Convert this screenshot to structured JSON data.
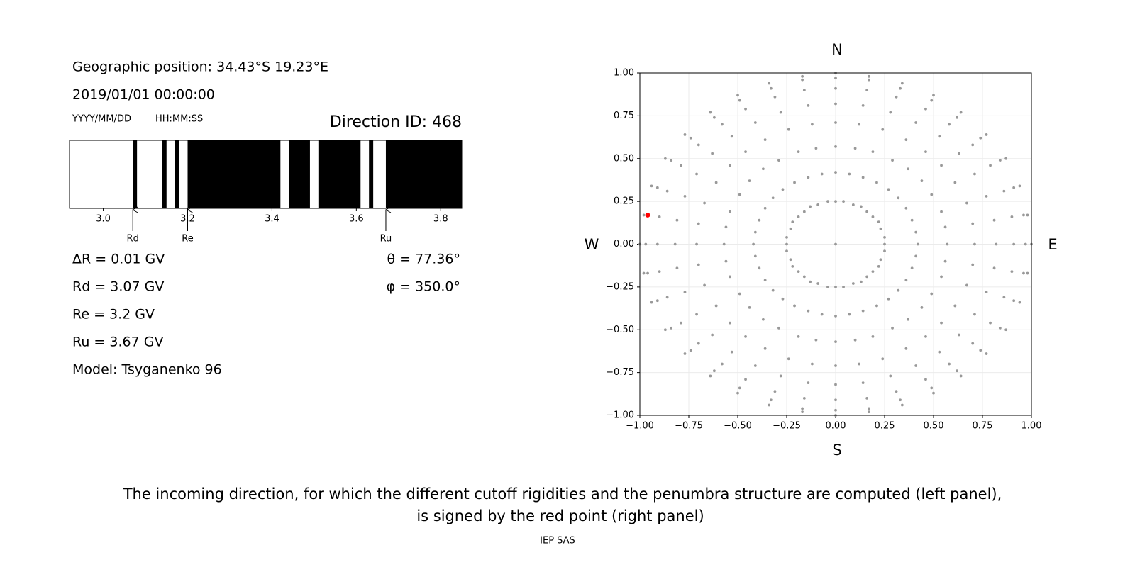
{
  "header": {
    "position": "Geographic position: 34.43°S 19.23°E",
    "datetime": "2019/01/01 00:00:00",
    "date_format": "YYYY/MM/DD",
    "time_format": "HH:MM:SS",
    "direction": "Direction ID: 468"
  },
  "results": {
    "left": [
      "ΔR = 0.01 GV",
      "Rd = 3.07 GV",
      "Re = 3.2 GV",
      "Ru = 3.67 GV",
      "Model: Tsyganenko 96"
    ],
    "right": [
      "θ = 77.36°",
      "φ = 350.0°"
    ]
  },
  "caption": [
    "The incoming direction, for which the different cutoff rigidities and the penumbra structure are computed (left panel),",
    "is signed by the red point (right panel)"
  ],
  "footer": "IEP SAS",
  "chart_data": [
    {
      "type": "penumbra",
      "color": "#000000",
      "xlim": [
        2.92,
        3.85
      ],
      "xticks": [
        {
          "value": 3,
          "label": "3.0"
        },
        3.2,
        3.4,
        3.6,
        3.8
      ],
      "intervals": [
        [
          3.07,
          3.08
        ],
        [
          3.14,
          3.15
        ],
        [
          3.17,
          3.18
        ],
        [
          3.2,
          3.42
        ],
        [
          3.44,
          3.49
        ],
        [
          3.51,
          3.61
        ],
        [
          3.63,
          3.64
        ],
        [
          3.67,
          3.85
        ]
      ],
      "markers": [
        {
          "label": "Rd",
          "value": 3.07
        },
        {
          "label": "Re",
          "value": 3.2
        },
        {
          "label": "Ru",
          "value": 3.67
        }
      ]
    },
    {
      "type": "scatter",
      "grid": true,
      "xlim": [
        -1,
        1
      ],
      "ylim": [
        -1,
        1
      ],
      "xticks": [
        {
          "value": -1,
          "label": "−1.00"
        },
        {
          "value": -0.75,
          "label": "−0.75"
        },
        {
          "value": -0.5,
          "label": "−0.50"
        },
        {
          "value": -0.25,
          "label": "−0.25"
        },
        {
          "value": 0,
          "label": "0.00"
        },
        0.25,
        {
          "value": 0.5,
          "label": "0.50"
        },
        {
          "value": 0.75,
          "label": "0.75"
        },
        {
          "value": 1,
          "label": "1.00"
        }
      ],
      "yticks": [
        {
          "value": -1,
          "label": "−1.00"
        },
        {
          "value": -0.75,
          "label": "−0.75"
        },
        {
          "value": -0.5,
          "label": "−0.50"
        },
        {
          "value": -0.25,
          "label": "−0.25"
        },
        {
          "value": 0,
          "label": "0.00"
        },
        0.25,
        {
          "value": 0.5,
          "label": "0.50"
        },
        {
          "value": 0.75,
          "label": "0.75"
        },
        {
          "value": 1,
          "label": "1.00"
        }
      ],
      "compass": {
        "north": "N",
        "south": "S",
        "west": "W",
        "east": "E"
      },
      "series": [
        {
          "color": "#999999",
          "x": [
            0,
            0,
            0.04,
            0.09,
            0.13,
            0.16,
            0.19,
            0.22,
            0.23,
            0.25,
            0.25,
            0.25,
            0.23,
            0.22,
            0.19,
            0.16,
            0.13,
            0.09,
            0.04,
            0,
            -0.04,
            -0.09,
            -0.13,
            -0.16,
            -0.19,
            -0.22,
            -0.23,
            -0.25,
            -0.25,
            -0.25,
            -0.23,
            -0.22,
            -0.19,
            -0.16,
            -0.13,
            -0.09,
            -0.04,
            0,
            0.07,
            0.14,
            0.21,
            0.27,
            0.32,
            0.36,
            0.39,
            0.41,
            0.42,
            0.41,
            0.39,
            0.36,
            0.32,
            0.27,
            0.21,
            0.14,
            0.07,
            0,
            -0.07,
            -0.14,
            -0.21,
            -0.27,
            -0.32,
            -0.36,
            -0.39,
            -0.41,
            -0.42,
            -0.41,
            -0.39,
            -0.36,
            -0.32,
            -0.27,
            -0.21,
            -0.14,
            -0.07,
            0,
            0.1,
            0.19,
            0.29,
            0.37,
            0.44,
            0.49,
            0.54,
            0.56,
            0.57,
            0.56,
            0.54,
            0.49,
            0.44,
            0.37,
            0.29,
            0.19,
            0.1,
            0,
            -0.1,
            -0.19,
            -0.29,
            -0.37,
            -0.44,
            -0.49,
            -0.54,
            -0.56,
            -0.57,
            -0.56,
            -0.54,
            -0.49,
            -0.44,
            -0.37,
            -0.29,
            -0.19,
            -0.1,
            0,
            0.12,
            0.24,
            0.36,
            0.46,
            0.54,
            0.61,
            0.67,
            0.7,
            0.71,
            0.7,
            0.67,
            0.61,
            0.54,
            0.46,
            0.36,
            0.24,
            0.12,
            0,
            -0.12,
            -0.24,
            -0.36,
            -0.46,
            -0.54,
            -0.61,
            -0.67,
            -0.7,
            -0.71,
            -0.7,
            -0.67,
            -0.61,
            -0.54,
            -0.46,
            -0.36,
            -0.24,
            -0.12,
            0,
            0.14,
            0.28,
            0.41,
            0.53,
            0.63,
            0.71,
            0.77,
            0.81,
            0.82,
            0.81,
            0.77,
            0.71,
            0.63,
            0.53,
            0.41,
            0.28,
            0.14,
            0,
            -0.14,
            -0.28,
            -0.41,
            -0.53,
            -0.63,
            -0.71,
            -0.77,
            -0.81,
            -0.82,
            -0.81,
            -0.77,
            -0.71,
            -0.63,
            -0.53,
            -0.41,
            -0.28,
            -0.14,
            0,
            0.16,
            0.31,
            0.46,
            0.58,
            0.7,
            0.79,
            0.86,
            0.9,
            0.91,
            0.9,
            0.86,
            0.79,
            0.7,
            0.58,
            0.46,
            0.31,
            0.16,
            0,
            -0.16,
            -0.31,
            -0.46,
            -0.58,
            -0.7,
            -0.79,
            -0.86,
            -0.9,
            -0.91,
            -0.9,
            -0.86,
            -0.79,
            -0.7,
            -0.58,
            -0.46,
            -0.31,
            -0.16,
            0,
            0.17,
            0.33,
            0.49,
            0.62,
            0.74,
            0.84,
            0.91,
            0.96,
            0.97,
            0.96,
            0.91,
            0.84,
            0.74,
            0.62,
            0.49,
            0.33,
            0.17,
            0,
            -0.17,
            -0.33,
            -0.49,
            -0.62,
            -0.74,
            -0.84,
            -0.91,
            -0.96,
            -0.97,
            -0.96,
            -0.91,
            -0.84,
            -0.74,
            -0.62,
            -0.49,
            -0.33,
            -0.17,
            0,
            0.17,
            0.34,
            0.5,
            0.64,
            0.77,
            0.87,
            0.94,
            0.98,
            1,
            0.98,
            0.94,
            0.87,
            0.77,
            0.64,
            0.5,
            0.34,
            0.17,
            0,
            -0.17,
            -0.34,
            -0.5,
            -0.64,
            -0.77,
            -0.87,
            -0.94,
            -0.98,
            -1,
            -0.98,
            -0.94,
            -0.87,
            -0.77,
            -0.64,
            -0.5,
            -0.34,
            -0.17
          ],
          "y": [
            0,
            0.25,
            0.25,
            0.23,
            0.22,
            0.19,
            0.16,
            0.13,
            0.09,
            0.04,
            0,
            -0.04,
            -0.09,
            -0.13,
            -0.16,
            -0.19,
            -0.22,
            -0.23,
            -0.25,
            -0.25,
            -0.25,
            -0.23,
            -0.22,
            -0.19,
            -0.16,
            -0.13,
            -0.09,
            -0.04,
            0,
            0.04,
            0.09,
            0.13,
            0.16,
            0.19,
            0.22,
            0.23,
            0.25,
            0.42,
            0.41,
            0.39,
            0.36,
            0.32,
            0.27,
            0.21,
            0.14,
            0.07,
            0,
            -0.07,
            -0.14,
            -0.21,
            -0.27,
            -0.32,
            -0.36,
            -0.39,
            -0.41,
            -0.42,
            -0.41,
            -0.39,
            -0.36,
            -0.32,
            -0.27,
            -0.21,
            -0.14,
            -0.07,
            0,
            0.07,
            0.14,
            0.21,
            0.27,
            0.32,
            0.36,
            0.39,
            0.41,
            0.57,
            0.56,
            0.54,
            0.49,
            0.44,
            0.37,
            0.29,
            0.19,
            0.1,
            0,
            -0.1,
            -0.19,
            -0.29,
            -0.37,
            -0.44,
            -0.49,
            -0.54,
            -0.56,
            -0.57,
            -0.56,
            -0.54,
            -0.49,
            -0.44,
            -0.37,
            -0.29,
            -0.19,
            -0.1,
            0,
            0.1,
            0.19,
            0.29,
            0.37,
            0.44,
            0.49,
            0.54,
            0.56,
            0.71,
            0.7,
            0.67,
            0.61,
            0.54,
            0.46,
            0.36,
            0.24,
            0.12,
            0,
            -0.12,
            -0.24,
            -0.36,
            -0.46,
            -0.54,
            -0.61,
            -0.67,
            -0.7,
            -0.71,
            -0.7,
            -0.67,
            -0.61,
            -0.54,
            -0.46,
            -0.36,
            -0.24,
            -0.12,
            0,
            0.12,
            0.24,
            0.36,
            0.46,
            0.54,
            0.61,
            0.67,
            0.7,
            0.82,
            0.81,
            0.77,
            0.71,
            0.63,
            0.53,
            0.41,
            0.28,
            0.14,
            0,
            -0.14,
            -0.28,
            -0.41,
            -0.53,
            -0.63,
            -0.71,
            -0.77,
            -0.81,
            -0.82,
            -0.81,
            -0.77,
            -0.71,
            -0.63,
            -0.53,
            -0.41,
            -0.28,
            -0.14,
            0,
            0.14,
            0.28,
            0.41,
            0.53,
            0.63,
            0.71,
            0.77,
            0.81,
            0.91,
            0.9,
            0.86,
            0.79,
            0.7,
            0.58,
            0.46,
            0.31,
            0.16,
            0,
            -0.16,
            -0.31,
            -0.46,
            -0.58,
            -0.7,
            -0.79,
            -0.86,
            -0.9,
            -0.91,
            -0.9,
            -0.86,
            -0.79,
            -0.7,
            -0.58,
            -0.46,
            -0.31,
            -0.16,
            0,
            0.16,
            0.31,
            0.46,
            0.58,
            0.7,
            0.79,
            0.86,
            0.9,
            0.97,
            0.96,
            0.91,
            0.84,
            0.74,
            0.62,
            0.49,
            0.33,
            0.17,
            0,
            -0.17,
            -0.33,
            -0.49,
            -0.62,
            -0.74,
            -0.84,
            -0.91,
            -0.96,
            -0.97,
            -0.96,
            -0.91,
            -0.84,
            -0.74,
            -0.62,
            -0.49,
            -0.33,
            -0.17,
            0,
            0.17,
            0.33,
            0.49,
            0.62,
            0.74,
            0.84,
            0.91,
            0.96,
            1,
            0.98,
            0.94,
            0.87,
            0.77,
            0.64,
            0.5,
            0.34,
            0.17,
            0,
            -0.17,
            -0.34,
            -0.5,
            -0.64,
            -0.77,
            -0.87,
            -0.94,
            -0.98,
            -1,
            -0.98,
            -0.94,
            -0.87,
            -0.77,
            -0.64,
            -0.5,
            -0.34,
            -0.17,
            0,
            0.17,
            0.34,
            0.5,
            0.64,
            0.77,
            0.87,
            0.94,
            0.98
          ]
        },
        {
          "color": "#ff0000",
          "x": [
            -0.96
          ],
          "y": [
            0.17
          ]
        }
      ]
    }
  ]
}
